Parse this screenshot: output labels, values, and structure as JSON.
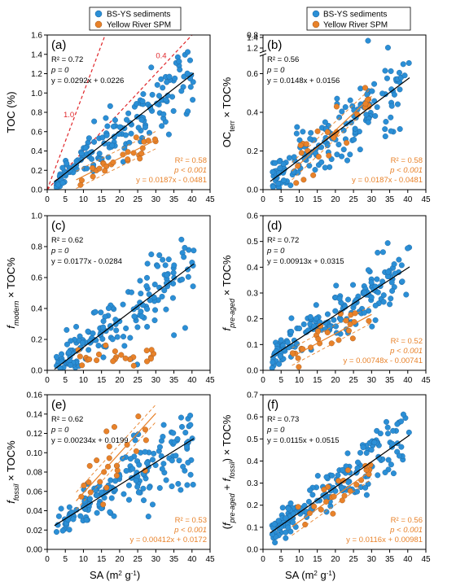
{
  "colors": {
    "blue": "#2b8fd6",
    "orange": "#e8822a",
    "red": "#e0262a",
    "black": "#000000"
  },
  "legend": [
    {
      "label": "BS-YS sediments",
      "color": "#2b8fd6"
    },
    {
      "label": "Yellow River SPM",
      "color": "#e8822a"
    }
  ],
  "xlabel_text": "SA (m",
  "xlabel_sup": "2",
  "xlabel_tail": " g",
  "xlabel_sup2": "-1",
  "xlabel_close": ")",
  "chart_data": [
    {
      "type": "scatter",
      "panel": "(a)",
      "ylabel": {
        "main": "TOC (%)",
        "sub": "",
        "tail": ""
      },
      "xlim": [
        0,
        45
      ],
      "ylim": [
        0,
        1.6
      ],
      "yticks": [
        "0.0",
        "0.2",
        "0.4",
        "0.6",
        "0.8",
        "1.0",
        "1.2",
        "1.4",
        "1.6"
      ],
      "xticks": [
        "0",
        "5",
        "10",
        "15",
        "20",
        "25",
        "30",
        "35",
        "40",
        "45"
      ],
      "stats_blue": [
        "R² = 0.72",
        "p = 0",
        "y = 0.0292x + 0.0226"
      ],
      "stats_orange": [
        "R² = 0.58",
        "p < 0.001",
        "y = 0.0187x - 0.0481"
      ],
      "fit_blue": {
        "slope": 0.0292,
        "intercept": 0.0226
      },
      "fit_orange": {
        "slope": 0.0187,
        "intercept": -0.0481
      },
      "ref_lines": [
        {
          "label": "1.0",
          "slope": 0.1
        },
        {
          "label": "0.4",
          "slope": 0.04
        }
      ]
    },
    {
      "type": "scatter",
      "panel": "(b)",
      "ylabel": {
        "main": "OC",
        "sub": "terr",
        "tail": " × TOC%"
      },
      "xlim": [
        0,
        45
      ],
      "ylim": [
        0,
        0.85
      ],
      "ybreak": true,
      "yticks": [
        "0.0",
        "0.2",
        "0.4",
        "0.6",
        "0.8"
      ],
      "ytop_ticks": [
        "1.2",
        "1.4"
      ],
      "xticks": [
        "0",
        "5",
        "10",
        "15",
        "20",
        "25",
        "30",
        "35",
        "40",
        "45"
      ],
      "stats_blue": [
        "R² = 0.56",
        "p = 0",
        "y = 0.0148x + 0.0156"
      ],
      "stats_orange": [
        "R² = 0.58",
        "p < 0.001",
        "y = 0.0187x - 0.0481"
      ],
      "fit_blue": {
        "slope": 0.0148,
        "intercept": 0.0156
      },
      "fit_orange": {
        "slope": 0.0187,
        "intercept": -0.0481
      }
    },
    {
      "type": "scatter",
      "panel": "(c)",
      "ylabel": {
        "main": "f",
        "sub": "modern",
        "tail": " × TOC%"
      },
      "xlim": [
        0,
        45
      ],
      "ylim": [
        0,
        1.0
      ],
      "yticks": [
        "0.0",
        "0.2",
        "0.4",
        "0.6",
        "0.8",
        "1.0"
      ],
      "xticks": [
        "0",
        "5",
        "10",
        "15",
        "20",
        "25",
        "30",
        "35",
        "40",
        "45"
      ],
      "stats_blue": [
        "R² = 0.62",
        "p = 0",
        "y = 0.0177x - 0.0284"
      ],
      "stats_orange": [],
      "fit_blue": {
        "slope": 0.0177,
        "intercept": -0.0284
      }
    },
    {
      "type": "scatter",
      "panel": "(d)",
      "ylabel": {
        "main": "f",
        "sub": "pre-aged",
        "tail": " × TOC%"
      },
      "xlim": [
        0,
        45
      ],
      "ylim": [
        0,
        0.6
      ],
      "yticks": [
        "0.0",
        "0.1",
        "0.2",
        "0.3",
        "0.4",
        "0.5",
        "0.6"
      ],
      "xticks": [
        "0",
        "5",
        "10",
        "15",
        "20",
        "25",
        "30",
        "35",
        "40",
        "45"
      ],
      "stats_blue": [
        "R² = 0.72",
        "p = 0",
        "y = 0.00913x + 0.0315"
      ],
      "stats_orange": [
        "R² = 0.52",
        "p < 0.001",
        "y = 0.00748x - 0.00741"
      ],
      "fit_blue": {
        "slope": 0.00913,
        "intercept": 0.0315
      },
      "fit_orange": {
        "slope": 0.00748,
        "intercept": -0.00741
      }
    },
    {
      "type": "scatter",
      "panel": "(e)",
      "ylabel": {
        "main": "f",
        "sub": "fossil",
        "tail": " × TOC%"
      },
      "xlim": [
        0,
        45
      ],
      "ylim": [
        0,
        0.16
      ],
      "yticks": [
        "0.00",
        "0.02",
        "0.04",
        "0.06",
        "0.08",
        "0.10",
        "0.12",
        "0.14",
        "0.16"
      ],
      "xticks": [
        "0",
        "5",
        "10",
        "15",
        "20",
        "25",
        "30",
        "35",
        "40",
        "45"
      ],
      "stats_blue": [
        "R² = 0.62",
        "p = 0",
        "y = 0.00234x + 0.0199"
      ],
      "stats_orange": [
        "R² = 0.53",
        "p < 0.001",
        "y = 0.00412x + 0.0172"
      ],
      "fit_blue": {
        "slope": 0.00234,
        "intercept": 0.0199
      },
      "fit_orange": {
        "slope": 0.00412,
        "intercept": 0.0172
      }
    },
    {
      "type": "scatter",
      "panel": "(f)",
      "ylabel": {
        "main": "(f",
        "sub": "pre-aged",
        "tail": " + ",
        "main2": "f",
        "sub2": "fossil",
        "tail2": ") × TOC%"
      },
      "xlim": [
        0,
        45
      ],
      "ylim": [
        0,
        0.7
      ],
      "yticks": [
        "0.0",
        "0.1",
        "0.2",
        "0.3",
        "0.4",
        "0.5",
        "0.6",
        "0.7"
      ],
      "xticks": [
        "0",
        "5",
        "10",
        "15",
        "20",
        "25",
        "30",
        "35",
        "40",
        "45"
      ],
      "stats_blue": [
        "R² = 0.73",
        "p = 0",
        "y = 0.0115x + 0.0515"
      ],
      "stats_orange": [
        "R² = 0.56",
        "p < 0.001",
        "y = 0.0116x + 0.00981"
      ],
      "fit_blue": {
        "slope": 0.0115,
        "intercept": 0.0515
      },
      "fit_orange": {
        "slope": 0.0116,
        "intercept": 0.00981
      }
    }
  ]
}
